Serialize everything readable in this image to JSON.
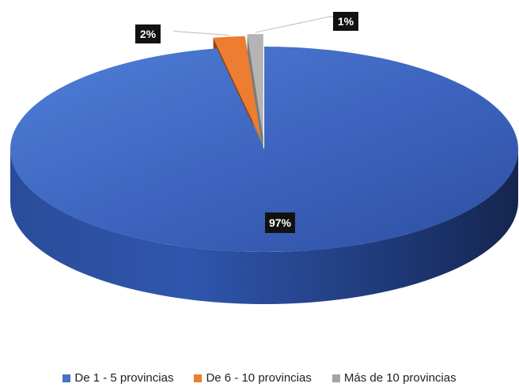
{
  "chart_data": {
    "type": "pie",
    "style": "3d",
    "categories": [
      "De 1 - 5 provincias",
      "De 6 - 10 provincias",
      "Más de 10 provincias"
    ],
    "values": [
      97,
      2,
      1
    ],
    "data_labels": [
      "97%",
      "2%",
      "1%"
    ],
    "colors": [
      "#4472C4",
      "#ED7D31",
      "#A5A5A5"
    ],
    "label_background": "#111111",
    "legend_position": "bottom"
  }
}
